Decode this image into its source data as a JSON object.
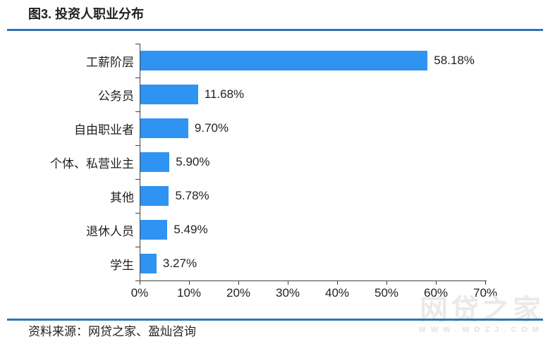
{
  "header": {
    "title": "图3. 投资人职业分布"
  },
  "footer": {
    "source": "资料来源：网贷之家、盈灿咨询"
  },
  "watermark": {
    "brand": "网贷之家",
    "url": "WWW.WDZJ.COM"
  },
  "colors": {
    "bar": "#2F93F2",
    "rule": "#2E74B5",
    "axis": "#404040",
    "watermark_brand": "#ECEAE6",
    "watermark_url": "#E4E2DD"
  },
  "chart_data": {
    "type": "bar",
    "orientation": "horizontal",
    "title": "图3. 投资人职业分布",
    "categories": [
      "工薪阶层",
      "公务员",
      "自由职业者",
      "个体、私营业主",
      "其他",
      "退休人员",
      "学生"
    ],
    "values": [
      58.18,
      11.68,
      9.7,
      5.9,
      5.78,
      5.49,
      3.27
    ],
    "value_labels": [
      "58.18%",
      "11.68%",
      "9.70%",
      "5.90%",
      "5.78%",
      "5.49%",
      "3.27%"
    ],
    "xlim": [
      0,
      70
    ],
    "x_ticks": [
      "0%",
      "10%",
      "20%",
      "30%",
      "40%",
      "50%",
      "60%",
      "70%"
    ],
    "xlabel": "",
    "ylabel": "",
    "grid": false,
    "legend": false
  }
}
